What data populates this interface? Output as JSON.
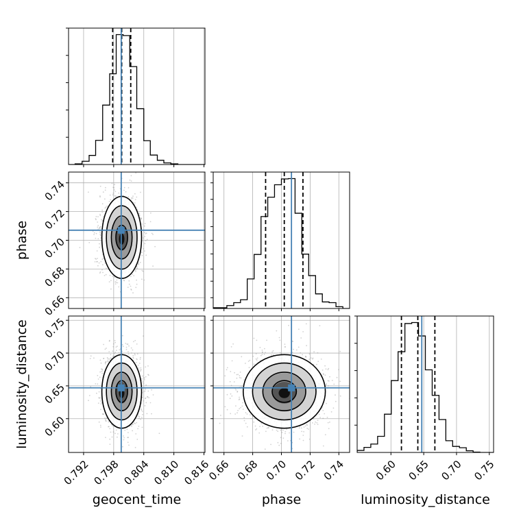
{
  "chart_data": {
    "type": "corner",
    "parameters": [
      "geocent_time",
      "phase",
      "luminosity_distance"
    ],
    "truths": {
      "geocent_time": 0.7995,
      "phase": 0.707,
      "luminosity_distance": 0.647
    },
    "quantiles": {
      "geocent_time": [
        0.7978,
        0.7996,
        0.8014
      ],
      "phase": [
        0.689,
        0.702,
        0.715
      ],
      "luminosity_distance": [
        0.616,
        0.641,
        0.667
      ]
    },
    "axes": {
      "geocent_time": {
        "range": [
          0.789,
          0.8162
        ],
        "ticks": [
          "0.792",
          "0.798",
          "0.804",
          "0.810",
          "0.816"
        ]
      },
      "phase": {
        "range": [
          0.6525,
          0.7475
        ],
        "ticks": [
          "0.66",
          "0.68",
          "0.70",
          "0.72",
          "0.74"
        ]
      },
      "luminosity_distance": {
        "range": [
          0.5485,
          0.7565
        ],
        "ticks": [
          "0.60",
          "0.65",
          "0.70",
          "0.75"
        ]
      }
    },
    "histograms": {
      "geocent_time": {
        "edges": [
          0.789,
          0.7903,
          0.7917,
          0.7931,
          0.7944,
          0.7958,
          0.7972,
          0.7985,
          0.7999,
          0.8012,
          0.8026,
          0.804,
          0.8053,
          0.8067,
          0.808,
          0.8094,
          0.8108,
          0.8121,
          0.8135,
          0.8148,
          0.8162
        ],
        "counts": [
          0,
          2,
          10,
          28,
          74,
          182,
          278,
          398,
          395,
          300,
          171,
          73,
          29,
          13,
          5,
          2,
          0,
          0,
          0,
          0
        ]
      },
      "phase": {
        "edges": [
          0.6525,
          0.6572,
          0.662,
          0.6668,
          0.6715,
          0.6762,
          0.681,
          0.6858,
          0.6905,
          0.6952,
          0.7,
          0.7048,
          0.7095,
          0.7142,
          0.719,
          0.7238,
          0.7285,
          0.7332,
          0.738,
          0.7428,
          0.7475
        ],
        "counts": [
          2,
          2,
          8,
          16,
          24,
          81,
          148,
          252,
          305,
          339,
          355,
          356,
          261,
          149,
          90,
          40,
          18,
          16,
          5,
          0
        ]
      },
      "luminosity_distance": {
        "edges": [
          0.5485,
          0.5589,
          0.5693,
          0.5797,
          0.5901,
          0.6005,
          0.6109,
          0.6213,
          0.6317,
          0.6421,
          0.6525,
          0.6629,
          0.6733,
          0.6837,
          0.6941,
          0.7045,
          0.7149,
          0.7253,
          0.7357,
          0.7461,
          0.7565
        ],
        "counts": [
          6,
          15,
          25,
          48,
          114,
          214,
          300,
          384,
          387,
          347,
          246,
          170,
          98,
          35,
          18,
          14,
          5,
          1,
          0,
          0
        ]
      }
    },
    "grid": true
  }
}
